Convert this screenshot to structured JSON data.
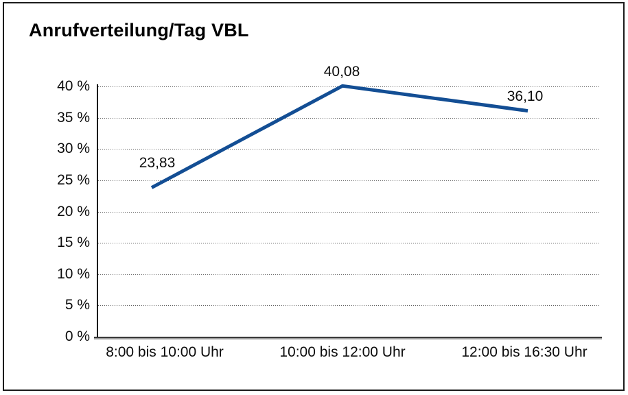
{
  "chart_data": {
    "type": "line",
    "title": "Anrufverteilung/Tag VBL",
    "categories": [
      "8:00 bis 10:00 Uhr",
      "10:00 bis 12:00 Uhr",
      "12:00 bis 16:30 Uhr"
    ],
    "values": [
      23.83,
      40.08,
      36.1
    ],
    "value_labels": [
      "23,83",
      "40,08",
      "36,10"
    ],
    "ytick_values": [
      0,
      5,
      10,
      15,
      20,
      25,
      30,
      35,
      40
    ],
    "ytick_labels": [
      "0 %",
      "5 %",
      "10 %",
      "15 %",
      "20 %",
      "25 %",
      "30 %",
      "35 %",
      "40 %"
    ],
    "ylim": [
      0,
      40
    ],
    "xlabel": "",
    "ylabel": "",
    "grid": "horizontal-dotted",
    "legend": "none",
    "colors": {
      "line": "#134e94",
      "text": "#0c0c0c",
      "gridline": "#5f5f5f",
      "frame_border": "#1b1b1b",
      "background": "#ffffff"
    }
  }
}
